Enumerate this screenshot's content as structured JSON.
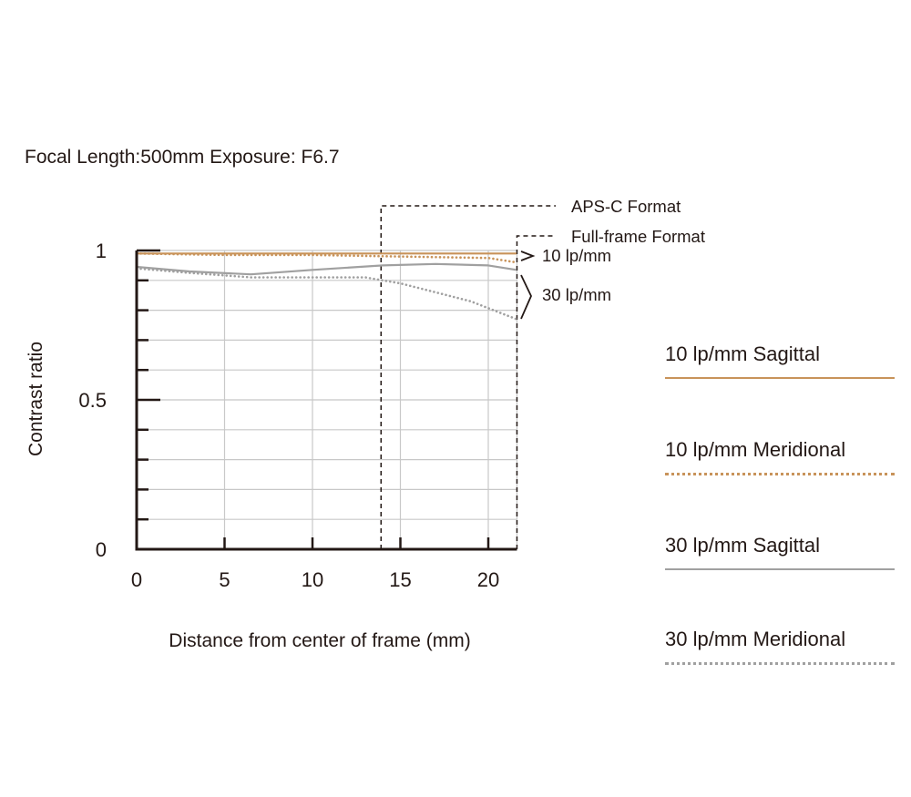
{
  "chart_data": {
    "type": "line",
    "title": "Focal Length:500mm  Exposure: F6.7",
    "xlabel": "Distance from center of frame (mm)",
    "ylabel": "Contrast ratio",
    "xlim": [
      0,
      21.63
    ],
    "ylim": [
      0,
      1
    ],
    "x_ticks": [
      "0",
      "5",
      "10",
      "15",
      "20"
    ],
    "y_ticks": [
      "0",
      "0.5",
      "1"
    ],
    "grid": true,
    "legend_position": "right",
    "series": [
      {
        "name": "10 lp/mm Sagittal",
        "color": "#c8935a",
        "style": "solid",
        "x": [
          0,
          5,
          10,
          15,
          20,
          21.6
        ],
        "y": [
          0.99,
          0.99,
          0.99,
          0.99,
          0.99,
          0.99
        ]
      },
      {
        "name": "10 lp/mm Meridional",
        "color": "#c8935a",
        "style": "dotted",
        "x": [
          0,
          5,
          10,
          15,
          20,
          21.6
        ],
        "y": [
          0.99,
          0.985,
          0.985,
          0.98,
          0.975,
          0.96
        ]
      },
      {
        "name": "30 lp/mm Sagittal",
        "color": "#a0a0a0",
        "style": "solid",
        "x": [
          0,
          3,
          6.5,
          10,
          14,
          17,
          20,
          21.6
        ],
        "y": [
          0.945,
          0.93,
          0.92,
          0.935,
          0.95,
          0.955,
          0.95,
          0.935
        ]
      },
      {
        "name": "30 lp/mm Meridional",
        "color": "#a0a0a0",
        "style": "dotted",
        "x": [
          0,
          3,
          6.5,
          10,
          13,
          15,
          17,
          19,
          21.6
        ],
        "y": [
          0.94,
          0.925,
          0.91,
          0.91,
          0.91,
          0.89,
          0.86,
          0.83,
          0.77
        ]
      }
    ],
    "annotations": {
      "aps_c_label": "APS-C Format",
      "aps_c_x": 13.9,
      "full_frame_label": "Full-frame Format",
      "full_frame_x": 21.63,
      "group_10": "10 lp/mm",
      "group_30": "30 lp/mm"
    }
  }
}
